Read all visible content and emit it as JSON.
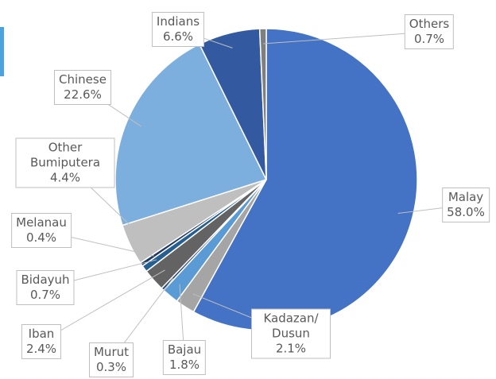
{
  "chart_data": {
    "type": "pie",
    "categories": [
      "Malay",
      "Kadazan/ Dusun",
      "Bajau",
      "Murut",
      "Iban",
      "Bidayuh",
      "Melanau",
      "Other Bumiputera",
      "Chinese",
      "Indians",
      "Others"
    ],
    "values": [
      58.0,
      2.1,
      1.8,
      0.3,
      2.4,
      0.7,
      0.4,
      4.4,
      22.6,
      6.6,
      0.7
    ],
    "value_labels": [
      "58.0%",
      "2.1%",
      "1.8%",
      "0.3%",
      "2.4%",
      "0.7%",
      "0.4%",
      "4.4%",
      "22.6%",
      "6.6%",
      "0.7%"
    ],
    "colors": [
      "#4472c4",
      "#a5a5a5",
      "#5b9bd5",
      "#264478",
      "#636363",
      "#255e91",
      "#1f3864",
      "#bfbfbf",
      "#7cafdd",
      "#335aa1",
      "#7f7f7f"
    ]
  }
}
